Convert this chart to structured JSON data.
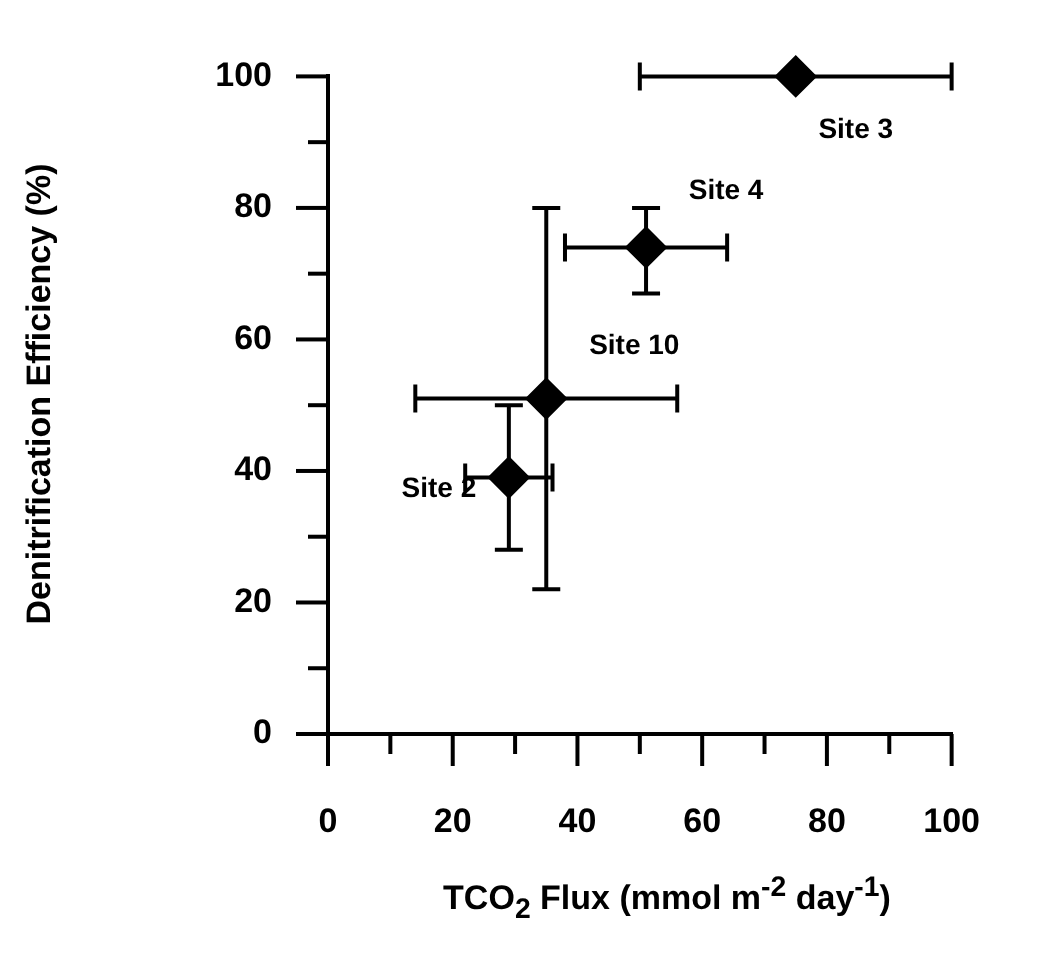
{
  "chart_data": {
    "type": "scatter",
    "xlabel": "TCO$_{2}$ Flux (mmol m$^{-2}$ day$^{-1}$)",
    "ylabel": "Denitrification Efficiency (%)",
    "x": [
      75,
      51,
      35,
      29
    ],
    "values": [
      100,
      74,
      51,
      39
    ],
    "errors": [
      null,
      [
        67,
        80
      ],
      [
        22,
        80
      ],
      [
        28,
        50
      ]
    ],
    "xerrors": [
      [
        50,
        100
      ],
      [
        38,
        64
      ],
      [
        14,
        56
      ],
      [
        22,
        36
      ]
    ],
    "color": "#000000",
    "marker": "diamond",
    "xlim": [
      0,
      100
    ],
    "xticks": [
      0,
      {
        "value": 10,
        "label": null
      },
      20,
      {
        "value": 30,
        "label": null
      },
      40,
      {
        "value": 50,
        "label": null
      },
      60,
      {
        "value": 70,
        "label": null
      },
      80,
      {
        "value": 90,
        "label": null
      },
      100
    ],
    "ylim": [
      0,
      100
    ],
    "yticks": [
      0,
      {
        "value": 10,
        "label": null
      },
      20,
      {
        "value": 30,
        "label": null
      },
      40,
      {
        "value": 50,
        "label": null
      },
      60,
      {
        "value": 70,
        "label": null
      },
      80,
      {
        "value": 90,
        "label": null
      },
      100
    ],
    "grid": false,
    "legend": false,
    "annotations": [
      {
        "text": "Site 3",
        "x": 75,
        "y": 100
      },
      {
        "text": "Site 4",
        "x": 51,
        "y": 74
      },
      {
        "text": "Site 10",
        "x": 35,
        "y": 51
      },
      {
        "text": "Site 2",
        "x": 29,
        "y": 39
      }
    ]
  }
}
